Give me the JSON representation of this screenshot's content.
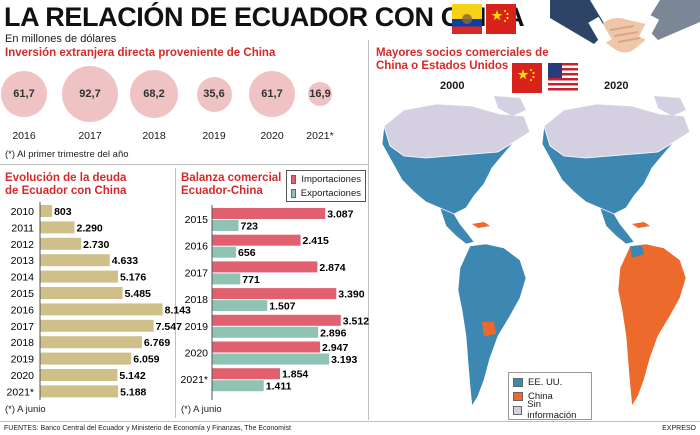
{
  "header": {
    "title": "LA RELACIÓN DE ECUADOR CON CHINA",
    "subtitle": "En millones de dólares"
  },
  "inversion": {
    "title": "Inversión extranjera directa proveniente de China",
    "note": "(*) Al primer trimestre del año"
  },
  "deuda": {
    "title_line1": "Evolución de la deuda",
    "title_line2": "de Ecuador con China",
    "note": "(*) A junio"
  },
  "balanza": {
    "title_line1": "Balanza comercial",
    "title_line2": "Ecuador-China",
    "note": "(*) A junio"
  },
  "mapa": {
    "title_line1": "Mayores socios comerciales de",
    "title_line2": "China o Estados Unidos",
    "year_left": "2000",
    "year_right": "2020",
    "legend": [
      "EE. UU.",
      "China",
      "Sin información"
    ]
  },
  "footer": {
    "sources": "FUENTES: Banco Central del Ecuador y Ministerio de Economía y Finanzas, The Economist",
    "brand": "EXPRESO"
  },
  "colors": {
    "red": "#d42a2a",
    "circle": "#efc3c3",
    "debt_bar": "#cfc08a",
    "imports": "#e06070",
    "exports": "#8fc3b3",
    "map_us": "#3d87b3",
    "map_china": "#ec6a2c",
    "map_none": "#d4d0e2"
  },
  "chart_data": [
    {
      "type": "bubble",
      "title": "Inversión extranjera directa proveniente de China",
      "categories": [
        "2016",
        "2017",
        "2018",
        "2019",
        "2020",
        "2021*"
      ],
      "values": [
        61.7,
        92.7,
        68.2,
        35.6,
        61.7,
        16.9
      ],
      "labels": [
        "61,7",
        "92,7",
        "68,2",
        "35,6",
        "61,7",
        "16,9"
      ]
    },
    {
      "type": "bar",
      "orientation": "horizontal",
      "title": "Evolución de la deuda de Ecuador con China",
      "categories": [
        "2010",
        "2011",
        "2012",
        "2013",
        "2014",
        "2015",
        "2016",
        "2017",
        "2018",
        "2019",
        "2020",
        "2021*"
      ],
      "values": [
        803,
        2290,
        2730,
        4633,
        5176,
        5485,
        8143,
        7547,
        6769,
        6059,
        5142,
        5188
      ],
      "labels": [
        "803",
        "2.290",
        "2.730",
        "4.633",
        "5.176",
        "5.485",
        "8.143",
        "7.547",
        "6.769",
        "6.059",
        "5.142",
        "5.188"
      ]
    },
    {
      "type": "bar",
      "orientation": "horizontal",
      "title": "Balanza comercial Ecuador-China",
      "categories": [
        "2015",
        "2016",
        "2017",
        "2018",
        "2019",
        "2020",
        "2021*"
      ],
      "series": [
        {
          "name": "Importaciones",
          "values": [
            3087,
            2415,
            2874,
            3390,
            3512,
            2947,
            1854
          ],
          "labels": [
            "3.087",
            "2.415",
            "2.874",
            "3.390",
            "3.512",
            "2.947",
            "1.854"
          ]
        },
        {
          "name": "Exportaciones",
          "values": [
            723,
            656,
            771,
            1507,
            2896,
            3193,
            1411
          ],
          "labels": [
            "723",
            "656",
            "771",
            "1.507",
            "2.896",
            "3.193",
            "1.411"
          ]
        }
      ]
    }
  ]
}
